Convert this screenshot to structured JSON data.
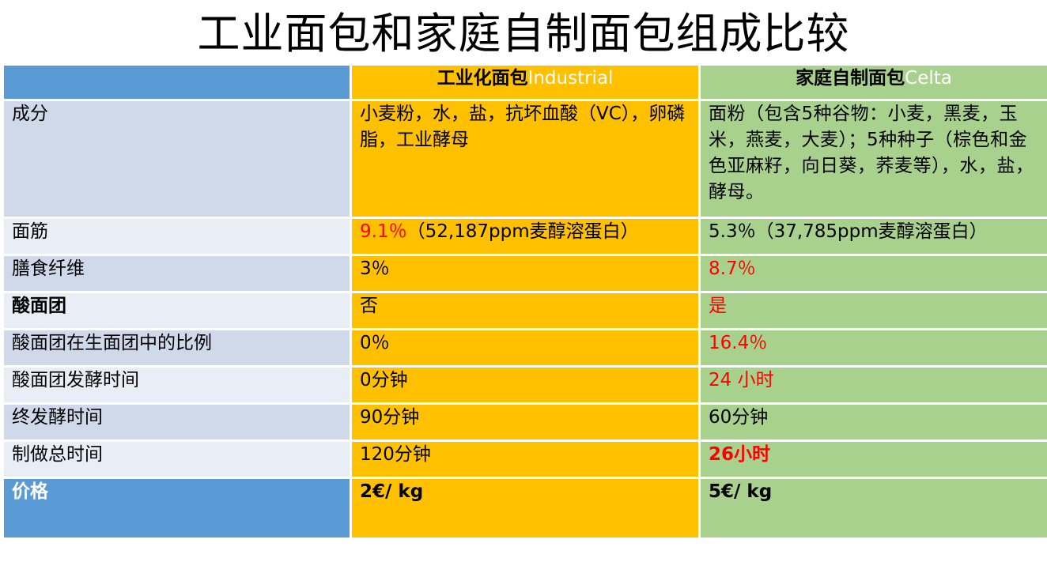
{
  "title": "工业面包和家庭自制面包组成比较",
  "header": {
    "blank": "",
    "industrial_cn": "工业化面包",
    "industrial_en": "Industrial",
    "home_cn": "家庭自制面包",
    "home_en": "Celta"
  },
  "rows": {
    "ingredients": {
      "label": "成分",
      "industrial": "小麦粉，水，盐，抗坏血酸（VC），卵磷脂，工业酵母",
      "home": "面粉（包含5种谷物：小麦，黑麦，玉米，燕麦，大麦）；5种种子（棕色和金色亚麻籽，向日葵，荞麦等），水，盐，酵母。"
    },
    "gluten": {
      "label": "面筋",
      "industrial_pct": "9.1％",
      "industrial_rest": "（52,187ppm麦醇溶蛋白）",
      "home": "5.3％（37,785ppm麦醇溶蛋白）"
    },
    "fiber": {
      "label": "膳食纤维",
      "industrial": "3％",
      "home": "8.7％"
    },
    "sourdough": {
      "label": "酸面团",
      "industrial": "否",
      "home": "是"
    },
    "sourdough_ratio": {
      "label": "酸面团在生面团中的比例",
      "industrial": "0％",
      "home": "16.4％"
    },
    "sourdough_time": {
      "label": "酸面团发酵时间",
      "industrial": "0分钟",
      "home": "24 小时"
    },
    "final_ferment": {
      "label": "终发酵时间",
      "industrial": "90分钟",
      "home": "60分钟"
    },
    "total_time": {
      "label": "制做总时间",
      "industrial": "120分钟",
      "home": "26小时"
    },
    "price": {
      "label": "价格",
      "industrial": "2€/ kg",
      "home": "5€/ kg"
    }
  },
  "colors": {
    "blue_header": "#5b9bd5",
    "industrial": "#ffc000",
    "home": "#a9d18e",
    "label_dark": "#cfd9ea",
    "label_light": "#e9eef6",
    "highlight_red": "#ff0000"
  }
}
